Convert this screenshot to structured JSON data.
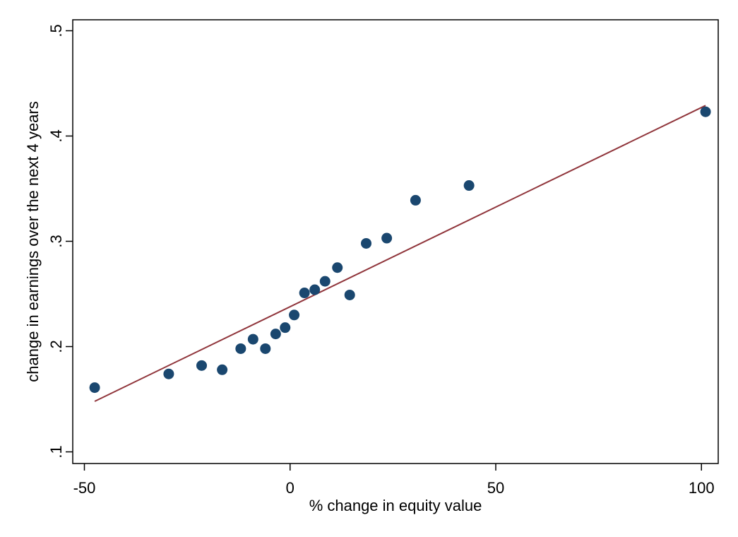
{
  "chart_data": {
    "type": "scatter",
    "title": "",
    "xlabel": "% change in equity value",
    "ylabel": "change in earnings over the next 4 years",
    "xlim": [
      -50,
      102
    ],
    "ylim": [
      0.1,
      0.5
    ],
    "xticks": [
      {
        "value": -50,
        "label": "-50"
      },
      {
        "value": 0,
        "label": "0"
      },
      {
        "value": 50,
        "label": "50"
      },
      {
        "value": 100,
        "label": "100"
      }
    ],
    "yticks": [
      {
        "value": 0.1,
        "label": ".1"
      },
      {
        "value": 0.2,
        "label": ".2"
      },
      {
        "value": 0.3,
        "label": ".3"
      },
      {
        "value": 0.4,
        "label": ".4"
      },
      {
        "value": 0.5,
        "label": ".5"
      }
    ],
    "grid": false,
    "legend": false,
    "colors": {
      "points": "#1a476f",
      "fit_line": "#90353b"
    },
    "series": [
      {
        "kind": "points",
        "x": [
          -47.5,
          -29.5,
          -21.5,
          -16.5,
          -12.0,
          -9.0,
          -6.0,
          -3.5,
          -1.2,
          1.0,
          3.5,
          6.0,
          8.5,
          11.5,
          14.5,
          18.5,
          23.5,
          30.5,
          43.5,
          101.0
        ],
        "y": [
          0.161,
          0.174,
          0.182,
          0.178,
          0.198,
          0.207,
          0.198,
          0.212,
          0.218,
          0.23,
          0.251,
          0.254,
          0.262,
          0.275,
          0.249,
          0.298,
          0.303,
          0.339,
          0.353,
          0.423
        ]
      },
      {
        "kind": "fit_line",
        "x": [
          -47.5,
          101.0
        ],
        "y": [
          0.148,
          0.429
        ]
      }
    ]
  }
}
